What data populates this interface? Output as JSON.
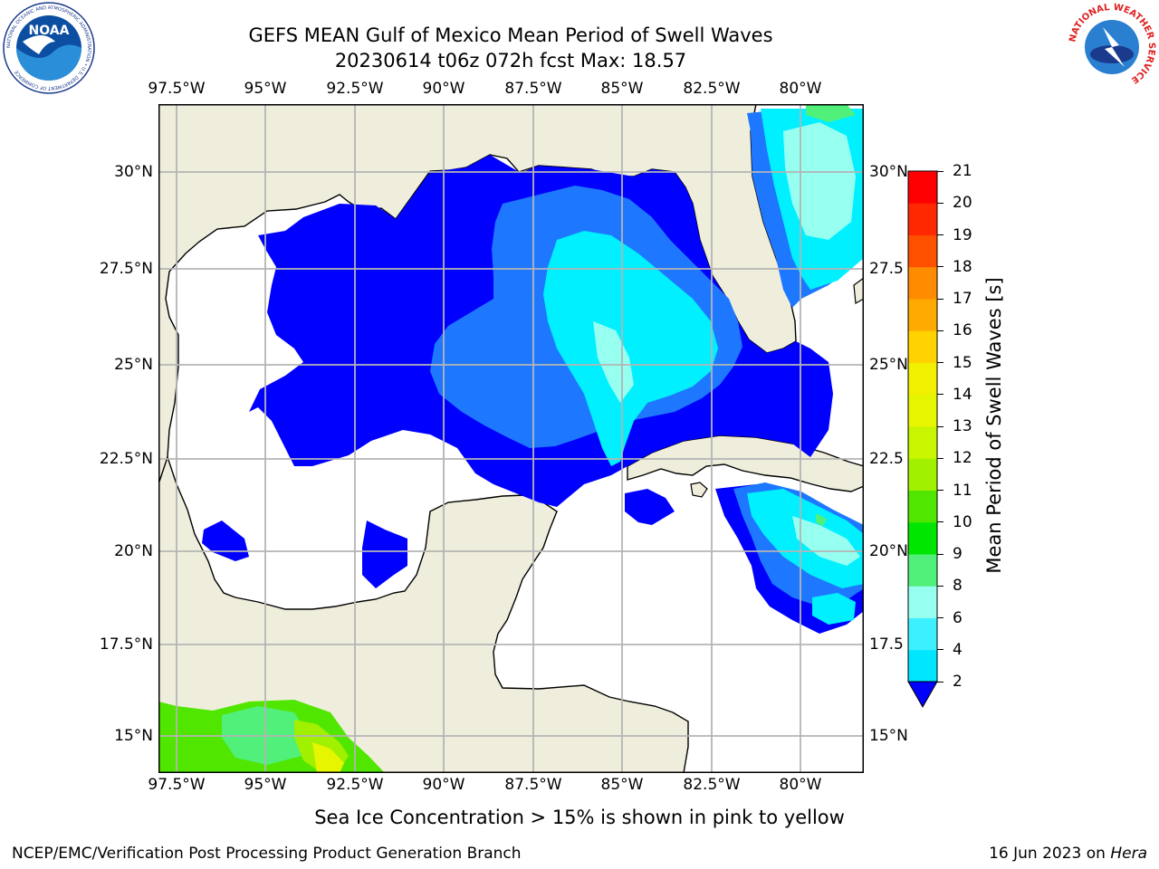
{
  "header": {
    "title_line1": "GEFS MEAN Gulf of Mexico Mean Period of Swell Waves",
    "title_line2": "20230614 t06z 072h fcst   Max: 18.57"
  },
  "logos": {
    "noaa_label": "NOAA",
    "noaa_ring_text": "NATIONAL OCEANIC AND ATMOSPHERIC ADMINISTRATION • U.S. DEPARTMENT OF COMMERCE",
    "nws_ring_text": "NATIONAL WEATHER SERVICE"
  },
  "map": {
    "lon_labels": [
      "97.5°W",
      "95°W",
      "92.5°W",
      "90°W",
      "87.5°W",
      "85°W",
      "82.5°W",
      "80°W"
    ],
    "lat_labels_left": [
      "30°N",
      "27.5°N",
      "25°N",
      "22.5°N",
      "20°N",
      "17.5°N",
      "15°N"
    ],
    "lat_labels_right": [
      "30°N",
      "27.5",
      "25°N",
      "22.5",
      "20°N",
      "17.5",
      "15°N"
    ],
    "colors": {
      "land": "#efeedc",
      "ocean": "#ffffff",
      "grid": "#b4b4b4",
      "coast": "#000000"
    }
  },
  "colorbar": {
    "label": "Mean Period of Swell Waves [s]",
    "ticks": [
      "2",
      "4",
      "6",
      "8",
      "9",
      "10",
      "11",
      "12",
      "13",
      "14",
      "15",
      "16",
      "17",
      "18",
      "19",
      "20",
      "21"
    ],
    "colors": [
      "#0a64fa",
      "#00e6ff",
      "#3cf0ff",
      "#96fff0",
      "#50f07a",
      "#00e600",
      "#50e600",
      "#a0f000",
      "#c8f500",
      "#e6f500",
      "#f0f000",
      "#ffd200",
      "#ffaa00",
      "#ff8c00",
      "#ff5000",
      "#ff2800",
      "#ff0000"
    ],
    "extend_color": "#0000ff"
  },
  "footer": {
    "note": "Sea Ice Concentration > 15% is shown in pink to yellow",
    "credit": "NCEP/EMC/Verification Post Processing Product Generation Branch",
    "date_prefix": "16 Jun 2023 on ",
    "date_host": "Hera"
  }
}
